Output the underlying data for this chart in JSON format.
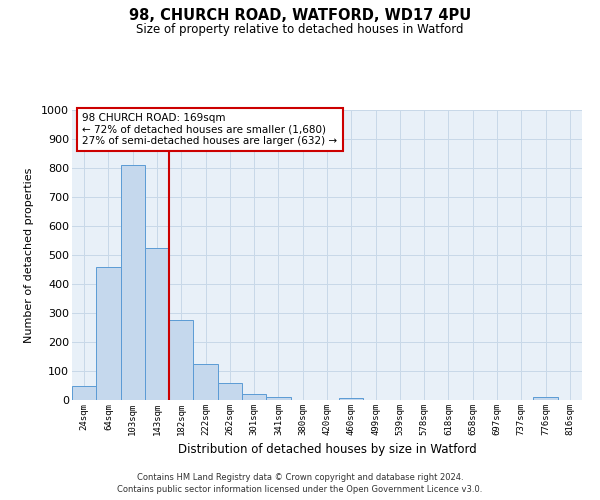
{
  "title": "98, CHURCH ROAD, WATFORD, WD17 4PU",
  "subtitle": "Size of property relative to detached houses in Watford",
  "xlabel": "Distribution of detached houses by size in Watford",
  "ylabel": "Number of detached properties",
  "bar_labels": [
    "24sqm",
    "64sqm",
    "103sqm",
    "143sqm",
    "182sqm",
    "222sqm",
    "262sqm",
    "301sqm",
    "341sqm",
    "380sqm",
    "420sqm",
    "460sqm",
    "499sqm",
    "539sqm",
    "578sqm",
    "618sqm",
    "658sqm",
    "697sqm",
    "737sqm",
    "776sqm",
    "816sqm"
  ],
  "bar_values": [
    48,
    460,
    810,
    525,
    275,
    125,
    58,
    22,
    12,
    0,
    0,
    8,
    0,
    0,
    0,
    0,
    0,
    0,
    0,
    10,
    0
  ],
  "bar_color": "#c5d8ed",
  "bar_edge_color": "#5b9bd5",
  "grid_color": "#c8d8e8",
  "bg_color": "#e8f0f8",
  "property_line_color": "#cc0000",
  "annotation_text": "98 CHURCH ROAD: 169sqm\n← 72% of detached houses are smaller (1,680)\n27% of semi-detached houses are larger (632) →",
  "annotation_box_color": "#cc0000",
  "ylim": [
    0,
    1000
  ],
  "yticks": [
    0,
    100,
    200,
    300,
    400,
    500,
    600,
    700,
    800,
    900,
    1000
  ],
  "footer_line1": "Contains HM Land Registry data © Crown copyright and database right 2024.",
  "footer_line2": "Contains public sector information licensed under the Open Government Licence v3.0."
}
